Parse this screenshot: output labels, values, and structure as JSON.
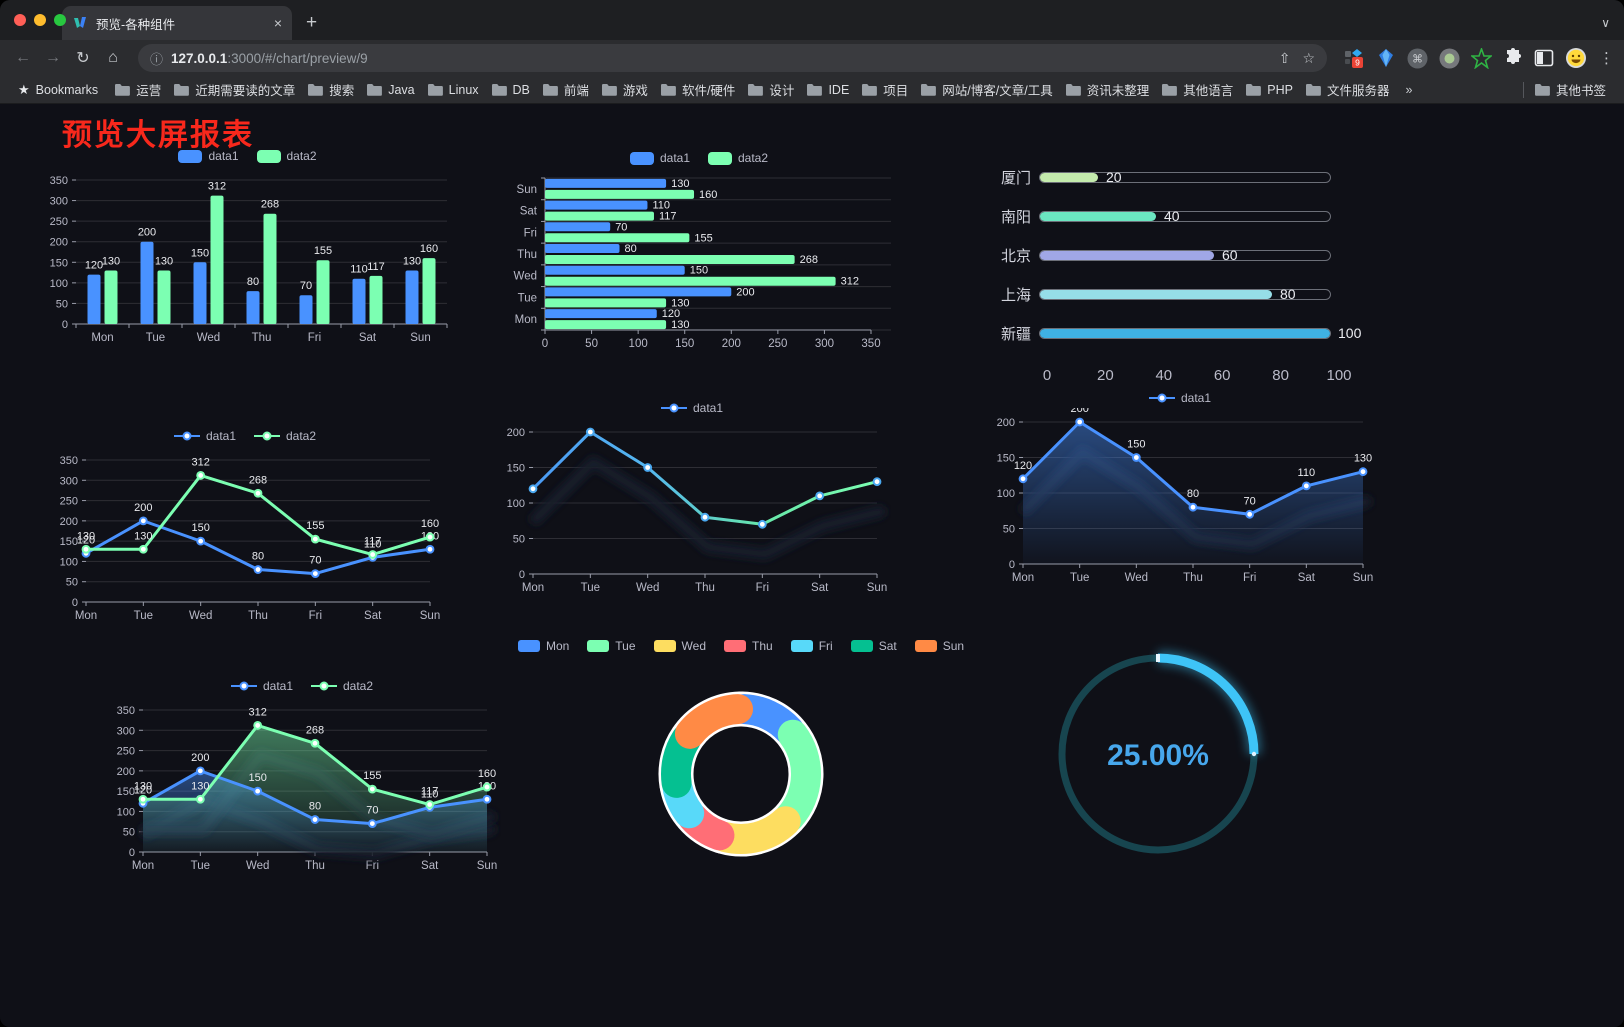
{
  "browser": {
    "tab": {
      "title": "预览-各种组件"
    },
    "url": {
      "host": "127.0.0.1",
      "rest": ":3000/#/chart/preview/9"
    },
    "icons": {
      "close": "×",
      "new_tab": "+",
      "chevron": "∨",
      "back": "←",
      "forward": "→",
      "reload": "↻",
      "home": "⌂",
      "info": "ⓘ",
      "share": "⇧",
      "star": "☆",
      "menu": "⋮",
      "bookmarks_star": "★",
      "overflow": "»"
    },
    "extension_badge": "9",
    "bookmarks_label": "Bookmarks",
    "bookmarks": [
      "运营",
      "近期需要读的文章",
      "搜索",
      "Java",
      "Linux",
      "DB",
      "前端",
      "游戏",
      "软件/硬件",
      "设计",
      "IDE",
      "项目",
      "网站/博客/文章/工具",
      "资讯未整理",
      "其他语言",
      "PHP",
      "文件服务器"
    ],
    "other_bookmarks": "其他书签"
  },
  "page": {
    "title": "预览大屏报表",
    "title_color": "#f8281c"
  },
  "palette": {
    "blue": "#4992ff",
    "green": "#7cffb2",
    "axis_text": "#b9bac8",
    "grid": "rgba(255,255,255,0.13)",
    "axis_line": "#9a9daa",
    "label": "#e9eaee"
  },
  "chart_data": [
    {
      "id": "bar-grouped",
      "type": "bar",
      "legend": true,
      "value_labels": true,
      "categories": [
        "Mon",
        "Tue",
        "Wed",
        "Thu",
        "Fri",
        "Sat",
        "Sun"
      ],
      "series": [
        {
          "name": "data1",
          "color": "#4992ff",
          "values": [
            120,
            200,
            150,
            80,
            70,
            110,
            130
          ]
        },
        {
          "name": "data2",
          "color": "#7cffb2",
          "values": [
            130,
            130,
            312,
            268,
            155,
            117,
            160
          ]
        }
      ],
      "ylim": [
        0,
        350
      ],
      "ytick": 50
    },
    {
      "id": "bar-horizontal",
      "type": "hbar",
      "legend": true,
      "value_labels": true,
      "categories": [
        "Mon",
        "Tue",
        "Wed",
        "Thu",
        "Fri",
        "Sat",
        "Sun"
      ],
      "series": [
        {
          "name": "data1",
          "color": "#4992ff",
          "values": [
            120,
            200,
            150,
            80,
            70,
            110,
            130
          ]
        },
        {
          "name": "data2",
          "color": "#7cffb2",
          "values": [
            130,
            130,
            312,
            268,
            155,
            117,
            160
          ]
        }
      ],
      "xlim": [
        0,
        350
      ],
      "xtick": 50
    },
    {
      "id": "progress-bars",
      "type": "progress",
      "xmax": 100,
      "rows": [
        {
          "label": "厦门",
          "value": 20,
          "color": "#c4ebad"
        },
        {
          "label": "南阳",
          "value": 40,
          "color": "#6be6c1"
        },
        {
          "label": "北京",
          "value": 60,
          "color": "#a0a7e6"
        },
        {
          "label": "上海",
          "value": 80,
          "color": "#96dee8"
        },
        {
          "label": "新疆",
          "value": 100,
          "color": "#3fb1e3"
        }
      ],
      "xticks": [
        0,
        20,
        40,
        60,
        80,
        100
      ]
    },
    {
      "id": "line-two-series",
      "type": "line",
      "legend": true,
      "value_labels": true,
      "categories": [
        "Mon",
        "Tue",
        "Wed",
        "Thu",
        "Fri",
        "Sat",
        "Sun"
      ],
      "series": [
        {
          "name": "data1",
          "color": "#4992ff",
          "values": [
            120,
            200,
            150,
            80,
            70,
            110,
            130
          ]
        },
        {
          "name": "data2",
          "color": "#7cffb2",
          "values": [
            130,
            130,
            312,
            268,
            155,
            117,
            160
          ]
        }
      ],
      "ylim": [
        0,
        350
      ],
      "ytick": 50
    },
    {
      "id": "line-gradient",
      "type": "line",
      "legend": true,
      "value_labels": false,
      "ghost": true,
      "categories": [
        "Mon",
        "Tue",
        "Wed",
        "Thu",
        "Fri",
        "Sat",
        "Sun"
      ],
      "series": [
        {
          "name": "data1",
          "color": "#4992ff",
          "gradient": [
            "#4a9af5",
            "#55b7ef",
            "#67e6a9",
            "#7cffb2"
          ],
          "values": [
            120,
            200,
            150,
            80,
            70,
            110,
            130
          ]
        }
      ],
      "ylim": [
        0,
        200
      ],
      "ytick": 50
    },
    {
      "id": "area-single",
      "type": "line",
      "legend": true,
      "value_labels": true,
      "ghost": true,
      "categories": [
        "Mon",
        "Tue",
        "Wed",
        "Thu",
        "Fri",
        "Sat",
        "Sun"
      ],
      "series": [
        {
          "name": "data1",
          "color": "#4992ff",
          "area": true,
          "values": [
            120,
            200,
            150,
            80,
            70,
            110,
            130
          ]
        }
      ],
      "ylim": [
        0,
        200
      ],
      "ytick": 50
    },
    {
      "id": "area-two-series",
      "type": "line",
      "legend": true,
      "value_labels": true,
      "ghost": true,
      "categories": [
        "Mon",
        "Tue",
        "Wed",
        "Thu",
        "Fri",
        "Sat",
        "Sun"
      ],
      "series": [
        {
          "name": "data1",
          "color": "#4992ff",
          "area": true,
          "values": [
            120,
            200,
            150,
            80,
            70,
            110,
            130
          ]
        },
        {
          "name": "data2",
          "color": "#7cffb2",
          "area": true,
          "values": [
            130,
            130,
            312,
            268,
            155,
            117,
            160
          ]
        }
      ],
      "ylim": [
        0,
        350
      ],
      "ytick": 50
    },
    {
      "id": "donut",
      "type": "pie",
      "legend": true,
      "categories": [
        "Mon",
        "Tue",
        "Wed",
        "Thu",
        "Fri",
        "Sat",
        "Sun"
      ],
      "values": [
        120,
        200,
        150,
        80,
        70,
        110,
        130
      ],
      "colors": [
        "#4992ff",
        "#7cffb2",
        "#fddd60",
        "#ff6e76",
        "#58d9f9",
        "#05c091",
        "#ff8a45"
      ]
    },
    {
      "id": "gauge",
      "type": "gauge",
      "value": 25,
      "label": "25.00%",
      "arc_color": "#3ec4f7",
      "track_color": "#17454f",
      "text_color": "#47a7ec"
    }
  ]
}
